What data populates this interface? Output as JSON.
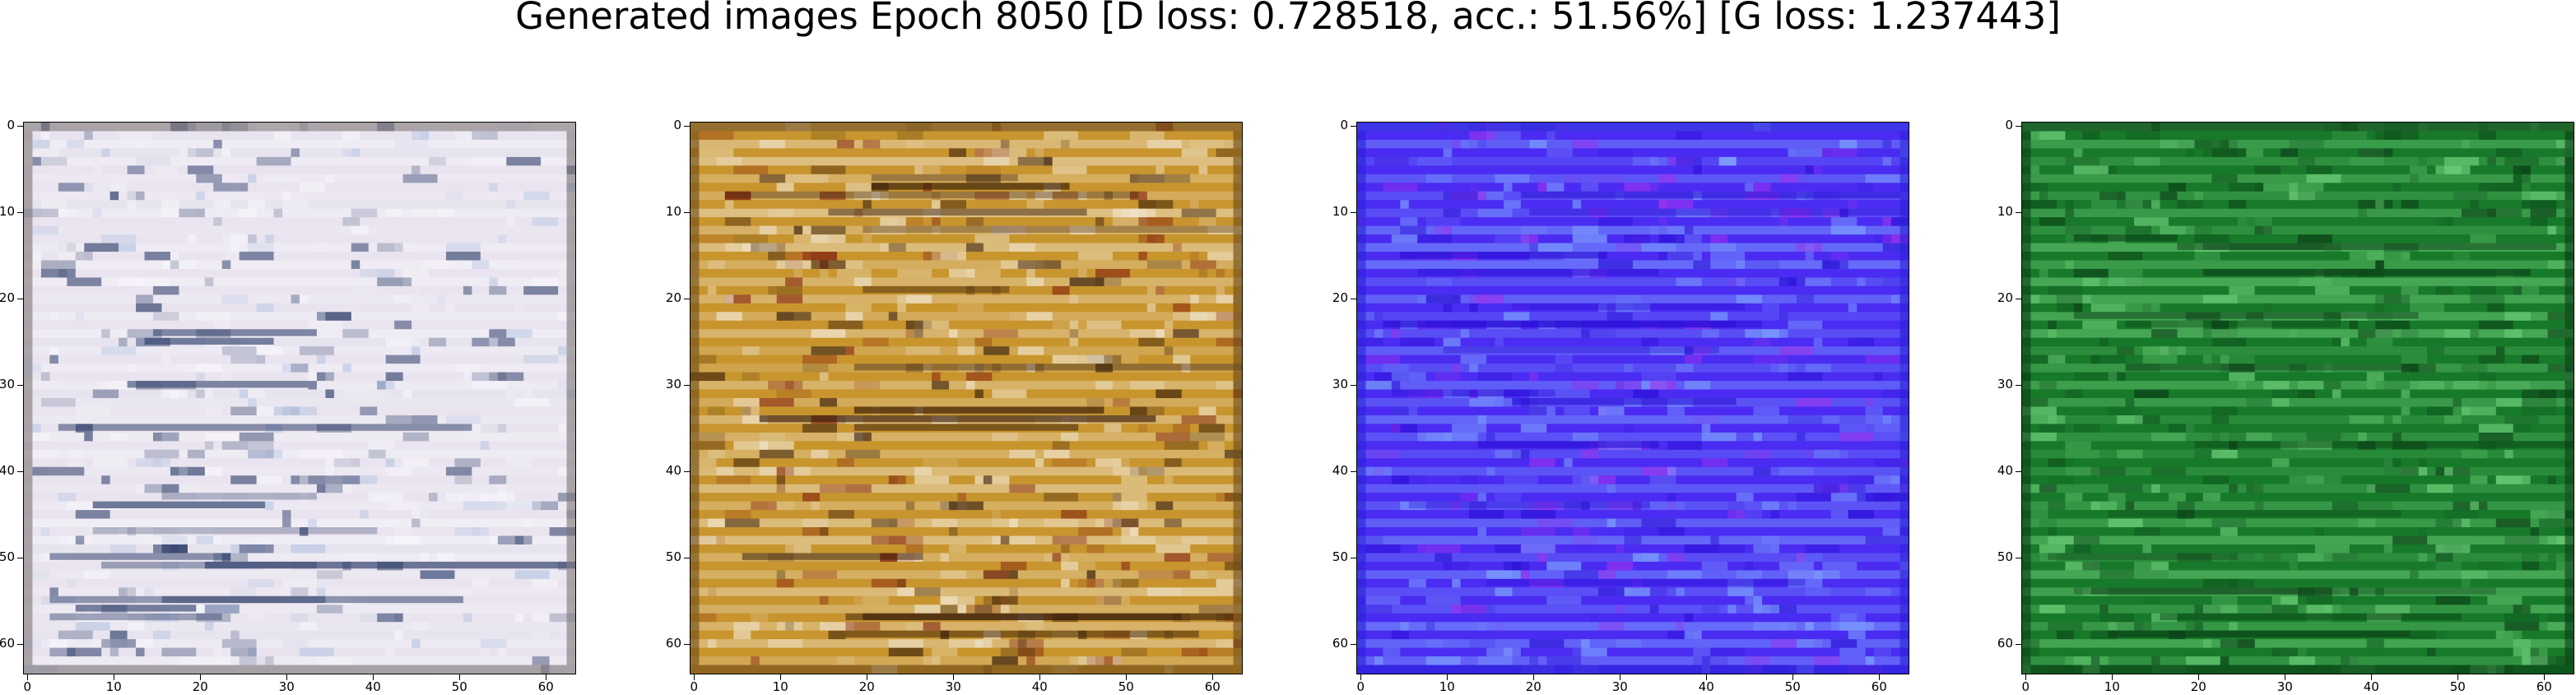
{
  "title": "Generated images Epoch 8050 [D loss: 0.728518, acc.: 51.56%] [G loss: 1.237443]",
  "axes": {
    "ticks": [
      0,
      10,
      20,
      30,
      40,
      50,
      60
    ],
    "tick_labels": [
      "0",
      "10",
      "20",
      "30",
      "40",
      "50",
      "60"
    ],
    "range": [
      0,
      63
    ]
  },
  "panels": [
    {
      "name": "panel-1",
      "description_palette": "pale-lavender",
      "colors": {
        "base": "#e9e4ef",
        "light": "#f7f5fb",
        "dark": "#2f3f6a",
        "accent": "#b8c6e3",
        "border": "#7c7476"
      }
    },
    {
      "name": "panel-2",
      "description_palette": "ochre",
      "colors": {
        "base": "#c8952e",
        "light": "#f1e6cf",
        "dark": "#3a1f0b",
        "accent": "#8a2e12",
        "border": "#6d4a18"
      }
    },
    {
      "name": "panel-3",
      "description_palette": "blue-violet",
      "colors": {
        "base": "#4b2cf2",
        "light": "#7fa5ff",
        "dark": "#2a10d6",
        "accent": "#9933ee",
        "border": "#2a21d8"
      }
    },
    {
      "name": "panel-4",
      "description_palette": "green",
      "colors": {
        "base": "#177a2a",
        "light": "#6fd07a",
        "dark": "#0c3e17",
        "accent": "#0f5a1f",
        "border": "#0a3d16"
      }
    }
  ]
}
